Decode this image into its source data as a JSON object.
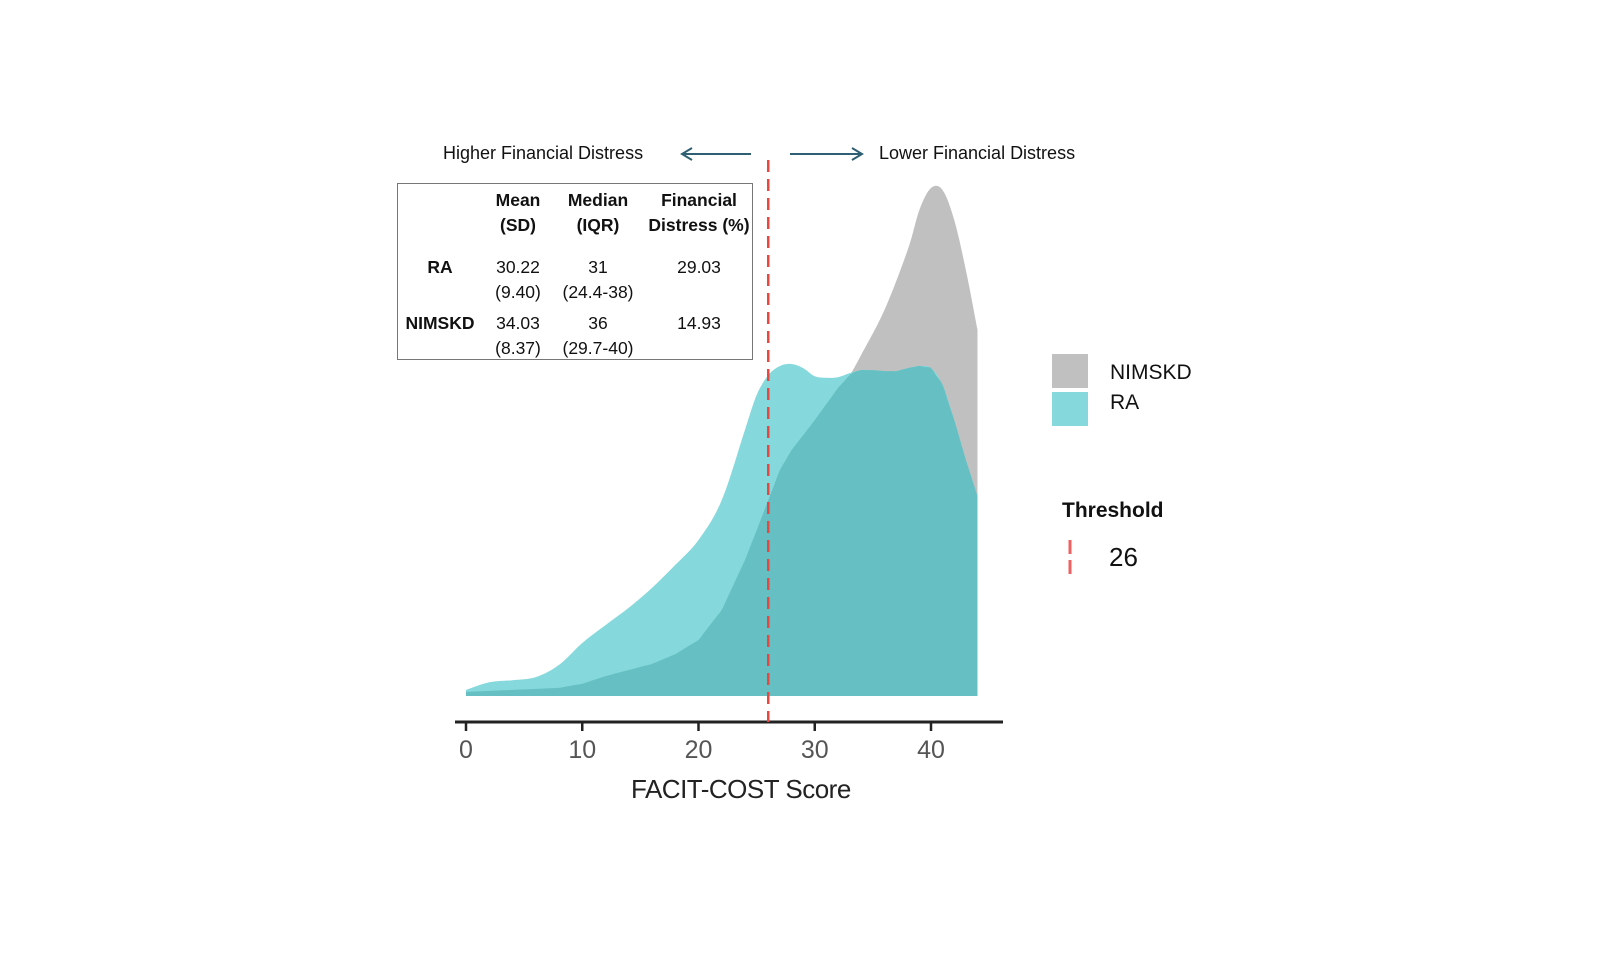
{
  "chart_data": {
    "type": "area",
    "subtype": "density",
    "xlabel": "FACIT-COST Score",
    "ylabel": "",
    "xlim": [
      0,
      44
    ],
    "xticks": [
      0,
      10,
      20,
      30,
      40
    ],
    "y_units": "relative density (peak of NIMSKD = 1)",
    "grid": false,
    "legend_placement": "right",
    "series": [
      {
        "name": "NIMSKD",
        "color": "#c0c0c0",
        "x": [
          0,
          4,
          8,
          10,
          12,
          14,
          16,
          18,
          20,
          22,
          24,
          25,
          26,
          27,
          28,
          30,
          32,
          33,
          34,
          36,
          38,
          39,
          40,
          41,
          42,
          43,
          44
        ],
        "y": [
          0.008,
          0.012,
          0.016,
          0.024,
          0.039,
          0.051,
          0.063,
          0.082,
          0.11,
          0.169,
          0.267,
          0.325,
          0.384,
          0.443,
          0.482,
          0.541,
          0.604,
          0.629,
          0.669,
          0.757,
          0.875,
          0.953,
          0.996,
          0.992,
          0.933,
          0.835,
          0.718
        ]
      },
      {
        "name": "RA",
        "color": "#85d9dc",
        "x": [
          0,
          2,
          4,
          6,
          8,
          10,
          12,
          14,
          16,
          18,
          20,
          22,
          24,
          25,
          26,
          27,
          28,
          29,
          30,
          31,
          32,
          33,
          34,
          35,
          36,
          37,
          38,
          39,
          40,
          41,
          42,
          43,
          44
        ],
        "y": [
          0.012,
          0.027,
          0.031,
          0.037,
          0.061,
          0.104,
          0.139,
          0.173,
          0.212,
          0.257,
          0.306,
          0.384,
          0.522,
          0.59,
          0.629,
          0.647,
          0.651,
          0.643,
          0.627,
          0.624,
          0.625,
          0.633,
          0.639,
          0.639,
          0.637,
          0.637,
          0.643,
          0.647,
          0.643,
          0.61,
          0.541,
          0.463,
          0.392
        ]
      }
    ],
    "overlap_color": "#66c0c3",
    "threshold": {
      "value": 26,
      "color": "#e8473f",
      "legend_title": "Threshold",
      "legend_label": "26"
    },
    "annotations": {
      "left": "Higher Financial Distress",
      "right": "Lower Financial Distress",
      "arrow_color": "#2f5f73"
    },
    "table": {
      "headers": [
        [
          "",
          ""
        ],
        [
          "Mean",
          "(SD)"
        ],
        [
          "Median",
          "(IQR)"
        ],
        [
          "Financial",
          "Distress (%)"
        ]
      ],
      "rows": [
        {
          "label": "RA",
          "mean": "30.22",
          "sd": "(9.40)",
          "median": "31",
          "iqr": "(24.4-38)",
          "distress": "29.03"
        },
        {
          "label": "NIMSKD",
          "mean": "34.03",
          "sd": "(8.37)",
          "median": "36",
          "iqr": "(29.7-40)",
          "distress": "14.93"
        }
      ]
    }
  }
}
